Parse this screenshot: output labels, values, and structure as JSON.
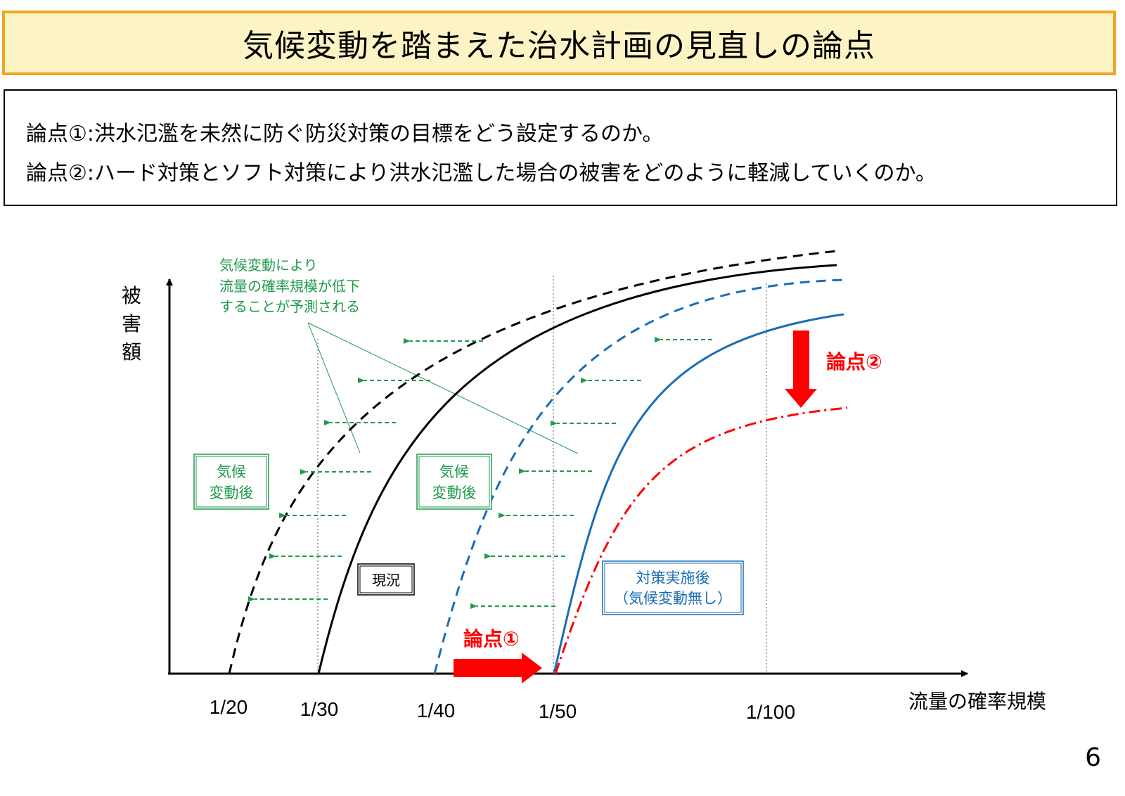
{
  "header": {
    "title": "気候変動を踏まえた治水計画の見直しの論点"
  },
  "issues": [
    {
      "label": "論点①",
      "text": "洪水氾濫を未然に防ぐ防災対策の目標をどう設定するのか。"
    },
    {
      "label": "論点②",
      "text": "ハード対策とソフト対策により洪水氾濫した場合の被害をどのように軽減していくのか。"
    }
  ],
  "diagram": {
    "y_axis_label": "被害額",
    "x_axis_label": "流量の確率規模",
    "x_ticks": [
      "1/20",
      "1/30",
      "1/40",
      "1/50",
      "1/100"
    ],
    "annotation_lines": [
      "気候変動により",
      "流量の確率規模が低下",
      "することが予測される"
    ],
    "box_after_climate_line1": "気候",
    "box_after_climate_line2": "変動後",
    "box_current": "現況",
    "box_measures_line1": "対策実施後",
    "box_measures_line2": "（気候変動無し）",
    "issue1_label": "論点①",
    "issue2_label": "論点②",
    "colors": {
      "black": "#000000",
      "blue": "#1b6db5",
      "green": "#1e9a4b",
      "red": "#ff0000"
    }
  },
  "page_number": "6"
}
